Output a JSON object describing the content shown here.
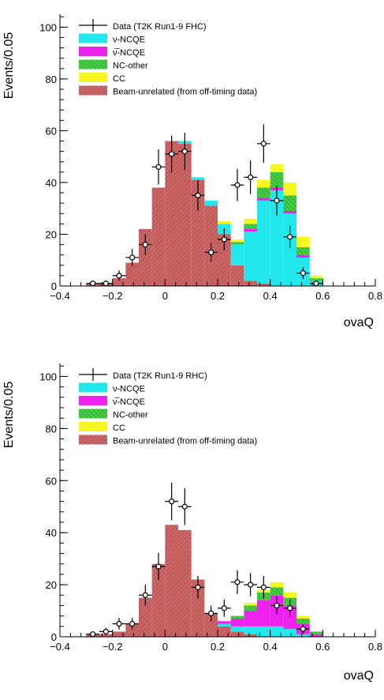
{
  "colors": {
    "signal": "#22e8ee",
    "anti": "#ee22ee",
    "ncother": "#44cc44",
    "cc": "#f6f622",
    "beam": "#cc6666",
    "beam_stroke": "#a54a4a"
  },
  "chart_data": [
    {
      "type": "bar",
      "stacked": true,
      "xlabel": "ovaQ",
      "ylabel": "Events/0.05",
      "xlim": [
        -0.4,
        0.8
      ],
      "ylim": [
        0,
        105
      ],
      "xticks": [
        "−0.4",
        "−0.2",
        "0",
        "0.2",
        "0.4",
        "0.6",
        "0.8"
      ],
      "yticks": [
        "0",
        "20",
        "40",
        "60",
        "80",
        "100"
      ],
      "bin_edges": [
        -0.3,
        -0.25,
        -0.2,
        -0.15,
        -0.1,
        -0.05,
        0.0,
        0.05,
        0.1,
        0.15,
        0.2,
        0.25,
        0.3,
        0.35,
        0.4,
        0.45,
        0.5,
        0.55,
        0.6,
        0.65
      ],
      "legend": [
        "Data (T2K Run1-9 FHC)",
        "ν-NCQE",
        "ν̅-NCQE",
        "NC-other",
        "CC",
        "Beam-unrelated (from off-timing data)"
      ],
      "series": [
        {
          "name": "Beam-unrelated (from off-timing data)",
          "values": [
            1,
            1,
            3,
            9,
            22,
            38,
            56,
            55,
            41,
            31,
            20,
            8,
            2,
            1,
            0,
            0,
            0,
            0,
            0
          ]
        },
        {
          "name": "ν-NCQE",
          "values": [
            0,
            0,
            0,
            0,
            0,
            0,
            0,
            1,
            1,
            2,
            4,
            8,
            19,
            32,
            37,
            28,
            11,
            2,
            0
          ]
        },
        {
          "name": "ν̅-NCQE",
          "values": [
            0,
            0,
            0,
            0,
            0,
            0,
            0,
            0,
            0,
            0,
            0,
            0,
            1,
            1,
            1,
            1,
            1,
            0,
            0
          ]
        },
        {
          "name": "NC-other",
          "values": [
            0,
            0,
            0,
            0,
            0,
            0,
            0,
            0,
            0,
            0,
            0,
            1,
            2,
            4,
            6,
            6,
            3,
            1,
            0
          ]
        },
        {
          "name": "CC",
          "values": [
            0,
            0,
            0,
            0,
            0,
            0,
            0,
            0,
            0,
            0,
            1,
            1,
            2,
            3,
            3,
            5,
            4,
            1,
            0
          ]
        }
      ],
      "data_points": {
        "name": "Data (T2K Run1-9 FHC)",
        "x": [
          -0.275,
          -0.225,
          -0.175,
          -0.125,
          -0.075,
          -0.025,
          0.025,
          0.075,
          0.125,
          0.175,
          0.225,
          0.275,
          0.325,
          0.375,
          0.425,
          0.475,
          0.525,
          0.575
        ],
        "y": [
          1,
          1,
          4,
          11,
          16,
          46,
          51,
          52,
          35,
          13,
          18,
          39,
          42,
          55,
          33,
          19,
          5,
          1
        ]
      }
    },
    {
      "type": "bar",
      "stacked": true,
      "xlabel": "ovaQ",
      "ylabel": "Events/0.05",
      "xlim": [
        -0.4,
        0.8
      ],
      "ylim": [
        0,
        105
      ],
      "xticks": [
        "−0.4",
        "−0.2",
        "0",
        "0.2",
        "0.4",
        "0.6",
        "0.8"
      ],
      "yticks": [
        "0",
        "20",
        "40",
        "60",
        "80",
        "100"
      ],
      "bin_edges": [
        -0.3,
        -0.25,
        -0.2,
        -0.15,
        -0.1,
        -0.05,
        0.0,
        0.05,
        0.1,
        0.15,
        0.2,
        0.25,
        0.3,
        0.35,
        0.4,
        0.45,
        0.5,
        0.55,
        0.6,
        0.65
      ],
      "legend": [
        "Data (T2K Run1-9 RHC)",
        "ν-NCQE",
        "ν̅-NCQE",
        "NC-other",
        "CC",
        "Beam-unrelated (from off-timing data)"
      ],
      "series": [
        {
          "name": "Beam-unrelated (from off-timing data)",
          "values": [
            1,
            1,
            2,
            5,
            15,
            28,
            43,
            41,
            22,
            9,
            4,
            2,
            1,
            0,
            0,
            0,
            0,
            0,
            0
          ]
        },
        {
          "name": "ν-NCQE",
          "values": [
            0,
            0,
            0,
            0,
            0,
            0,
            0,
            0,
            0,
            0,
            1,
            2,
            3,
            4,
            4,
            3,
            1,
            0,
            0
          ]
        },
        {
          "name": "ν̅-NCQE",
          "values": [
            0,
            0,
            0,
            0,
            0,
            0,
            0,
            0,
            0,
            0,
            1,
            3,
            6,
            10,
            12,
            9,
            4,
            1,
            0
          ]
        },
        {
          "name": "NC-other",
          "values": [
            0,
            0,
            0,
            0,
            0,
            0,
            0,
            0,
            0,
            0,
            0,
            1,
            2,
            3,
            3,
            3,
            2,
            1,
            0
          ]
        },
        {
          "name": "CC",
          "values": [
            0,
            0,
            0,
            0,
            0,
            0,
            0,
            0,
            0,
            0,
            0,
            0,
            1,
            1,
            2,
            2,
            1,
            0,
            0
          ]
        }
      ],
      "data_points": {
        "name": "Data (T2K Run1-9 RHC)",
        "x": [
          -0.275,
          -0.225,
          -0.175,
          -0.125,
          -0.075,
          -0.025,
          0.025,
          0.075,
          0.125,
          0.175,
          0.225,
          0.275,
          0.325,
          0.375,
          0.425,
          0.475,
          0.525
        ],
        "y": [
          1,
          2,
          5,
          5,
          16,
          27,
          52,
          50,
          19,
          9,
          11,
          21,
          20,
          19,
          12,
          11,
          3
        ]
      }
    }
  ]
}
